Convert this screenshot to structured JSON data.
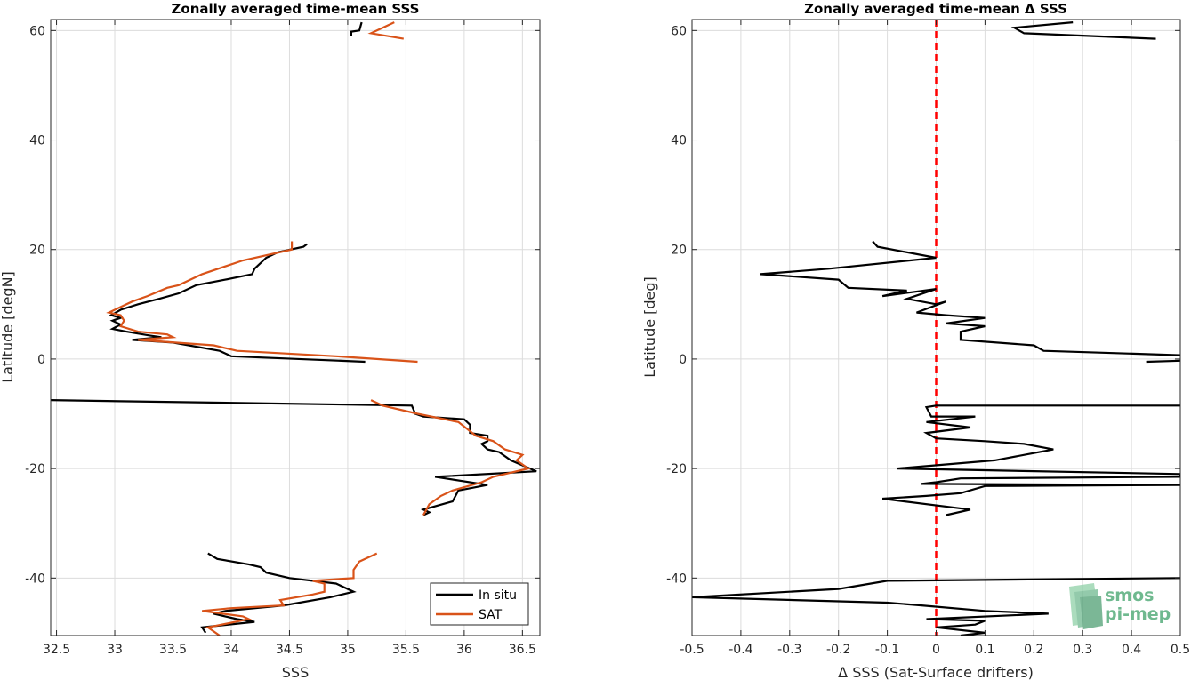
{
  "chart_data": [
    {
      "type": "line",
      "title": "Zonally averaged time-mean SSS",
      "xlabel": "SSS",
      "ylabel": "Latitude [degN]",
      "xlim": [
        32.45,
        36.65
      ],
      "ylim": [
        -50.5,
        62
      ],
      "xticks": [
        32.5,
        33,
        33.5,
        34,
        34.5,
        35,
        35.5,
        36,
        36.5
      ],
      "yticks": [
        -40,
        -20,
        0,
        20,
        40,
        60
      ],
      "grid": true,
      "legend": {
        "position": "bottom-right",
        "entries": [
          "In situ",
          "SAT"
        ]
      },
      "series": [
        {
          "name": "In situ",
          "color": "#000000",
          "segments": [
            [
              [
                35.12,
                61.5
              ],
              [
                35.1,
                60.0
              ],
              [
                35.03,
                59.8
              ],
              [
                35.03,
                59.0
              ]
            ],
            [
              [
                34.65,
                21.0
              ],
              [
                34.62,
                20.5
              ],
              [
                34.4,
                19.5
              ],
              [
                34.3,
                18.5
              ],
              [
                34.2,
                16.5
              ],
              [
                34.18,
                15.5
              ],
              [
                33.95,
                14.5
              ],
              [
                33.7,
                13.5
              ],
              [
                33.55,
                12.0
              ],
              [
                33.38,
                11.0
              ],
              [
                33.2,
                10.0
              ],
              [
                33.05,
                9.0
              ],
              [
                32.97,
                8.0
              ],
              [
                33.05,
                7.5
              ],
              [
                32.98,
                7.0
              ],
              [
                33.05,
                6.3
              ],
              [
                32.98,
                5.5
              ],
              [
                33.1,
                5.0
              ],
              [
                33.3,
                4.3
              ],
              [
                33.4,
                4.0
              ],
              [
                33.15,
                3.5
              ],
              [
                33.5,
                3.0
              ],
              [
                33.9,
                1.5
              ],
              [
                34.0,
                0.5
              ],
              [
                35.15,
                -0.5
              ]
            ],
            [
              [
                32.42,
                -7.5
              ],
              [
                35.55,
                -8.5
              ],
              [
                35.58,
                -10.0
              ],
              [
                35.65,
                -10.5
              ],
              [
                36.0,
                -11.0
              ],
              [
                36.05,
                -12.0
              ],
              [
                36.05,
                -13.5
              ],
              [
                36.2,
                -14.0
              ],
              [
                36.2,
                -15.0
              ],
              [
                36.15,
                -15.5
              ],
              [
                36.2,
                -16.5
              ],
              [
                36.3,
                -17.0
              ],
              [
                36.4,
                -18.5
              ],
              [
                36.62,
                -20.5
              ],
              [
                35.75,
                -21.5
              ],
              [
                36.2,
                -23.0
              ],
              [
                35.95,
                -24.0
              ],
              [
                35.9,
                -26.0
              ],
              [
                35.65,
                -27.5
              ],
              [
                35.7,
                -28.0
              ],
              [
                35.65,
                -28.5
              ]
            ],
            [
              [
                33.8,
                -35.5
              ],
              [
                33.88,
                -36.5
              ],
              [
                34.15,
                -37.5
              ],
              [
                34.25,
                -38.0
              ],
              [
                34.3,
                -39.0
              ],
              [
                34.5,
                -40.0
              ],
              [
                34.9,
                -41.0
              ],
              [
                35.05,
                -42.5
              ],
              [
                34.85,
                -43.5
              ],
              [
                34.45,
                -45.0
              ],
              [
                33.95,
                -46.0
              ],
              [
                33.85,
                -46.5
              ],
              [
                34.05,
                -47.5
              ],
              [
                34.2,
                -48.0
              ],
              [
                33.75,
                -49.0
              ],
              [
                33.78,
                -50.0
              ]
            ]
          ]
        },
        {
          "name": "SAT",
          "color": "#d95319",
          "segments": [
            [
              [
                35.4,
                61.5
              ],
              [
                35.2,
                59.5
              ],
              [
                35.48,
                58.5
              ]
            ],
            [
              [
                34.52,
                21.5
              ],
              [
                34.52,
                20.0
              ],
              [
                34.1,
                18.0
              ],
              [
                33.75,
                15.5
              ],
              [
                33.55,
                13.5
              ],
              [
                33.45,
                13.0
              ],
              [
                33.28,
                11.5
              ],
              [
                33.15,
                10.5
              ],
              [
                32.95,
                8.5
              ],
              [
                33.05,
                8.0
              ],
              [
                33.08,
                7.0
              ],
              [
                33.05,
                6.0
              ],
              [
                33.2,
                5.0
              ],
              [
                33.45,
                4.5
              ],
              [
                33.5,
                4.0
              ],
              [
                33.2,
                3.5
              ],
              [
                33.85,
                2.5
              ],
              [
                34.05,
                1.5
              ],
              [
                34.9,
                0.5
              ],
              [
                35.6,
                -0.5
              ]
            ],
            [
              [
                35.2,
                -7.5
              ],
              [
                35.3,
                -8.5
              ],
              [
                35.6,
                -10.0
              ],
              [
                35.95,
                -11.5
              ],
              [
                36.1,
                -14.0
              ],
              [
                36.25,
                -15.0
              ],
              [
                36.35,
                -16.5
              ],
              [
                36.5,
                -17.5
              ],
              [
                36.45,
                -18.5
              ],
              [
                36.55,
                -20.0
              ],
              [
                36.25,
                -21.5
              ],
              [
                36.15,
                -22.5
              ],
              [
                35.9,
                -24.0
              ],
              [
                35.8,
                -25.0
              ],
              [
                35.7,
                -26.5
              ],
              [
                35.65,
                -28.5
              ]
            ],
            [
              [
                35.25,
                -35.5
              ],
              [
                35.1,
                -37.0
              ],
              [
                35.05,
                -38.5
              ],
              [
                35.05,
                -40.0
              ],
              [
                34.7,
                -40.5
              ],
              [
                34.8,
                -41.0
              ],
              [
                34.8,
                -42.5
              ],
              [
                34.7,
                -43.0
              ],
              [
                34.42,
                -44.0
              ],
              [
                34.45,
                -45.0
              ],
              [
                34.0,
                -45.5
              ],
              [
                33.75,
                -46.0
              ],
              [
                34.1,
                -47.0
              ],
              [
                34.15,
                -47.5
              ],
              [
                33.8,
                -49.0
              ],
              [
                33.9,
                -50.5
              ]
            ]
          ]
        }
      ]
    },
    {
      "type": "line",
      "title": "Zonally averaged time-mean Δ SSS",
      "xlabel": "Δ SSS (Sat-Surface drifters)",
      "ylabel": "Latitude [deg]",
      "xlim": [
        -0.5,
        0.5
      ],
      "ylim": [
        -50.5,
        62
      ],
      "xticks": [
        -0.5,
        -0.4,
        -0.3,
        -0.2,
        -0.1,
        0,
        0.1,
        0.2,
        0.3,
        0.4,
        0.5
      ],
      "xticklabels": [
        "-0.5",
        "-0.4",
        "-0.3",
        "-0.2",
        "-0.1",
        "0",
        "0.1",
        "0.2",
        "0.3",
        "0.4",
        "0.5"
      ],
      "yticks": [
        -40,
        -20,
        0,
        20,
        40,
        60
      ],
      "grid": true,
      "reference_line": {
        "x": 0,
        "color": "#ff0000",
        "style": "dashed"
      },
      "series": [
        {
          "name": "",
          "color": "#000000",
          "segments": [
            [
              [
                0.28,
                61.5
              ],
              [
                0.16,
                60.5
              ],
              [
                0.18,
                59.5
              ],
              [
                0.45,
                58.5
              ]
            ],
            [
              [
                -0.13,
                21.5
              ],
              [
                -0.12,
                20.5
              ],
              [
                0.0,
                18.5
              ],
              [
                -0.22,
                16.5
              ],
              [
                -0.36,
                15.5
              ],
              [
                -0.2,
                14.5
              ],
              [
                -0.18,
                13.0
              ],
              [
                -0.06,
                12.5
              ],
              [
                -0.11,
                11.5
              ],
              [
                0.0,
                12.8
              ],
              [
                -0.06,
                11.0
              ],
              [
                0.0,
                10.0
              ],
              [
                0.02,
                10.5
              ],
              [
                -0.04,
                8.5
              ],
              [
                0.02,
                8.0
              ],
              [
                0.1,
                7.5
              ],
              [
                0.02,
                6.5
              ],
              [
                0.1,
                6.0
              ],
              [
                0.05,
                5.0
              ],
              [
                0.05,
                3.5
              ],
              [
                0.2,
                2.5
              ],
              [
                0.22,
                1.5
              ],
              [
                0.5,
                0.7
              ]
            ],
            [
              [
                0.43,
                -0.5
              ],
              [
                0.5,
                -0.3
              ]
            ],
            [
              [
                0.5,
                -8.5
              ],
              [
                0.0,
                -8.5
              ],
              [
                -0.02,
                -8.8
              ],
              [
                -0.01,
                -10.5
              ],
              [
                0.08,
                -10.5
              ],
              [
                -0.02,
                -11.5
              ],
              [
                0.07,
                -12.5
              ],
              [
                -0.02,
                -13.5
              ],
              [
                0.0,
                -14.5
              ],
              [
                0.1,
                -15.0
              ],
              [
                0.18,
                -15.5
              ],
              [
                0.24,
                -16.5
              ],
              [
                0.12,
                -18.5
              ],
              [
                -0.08,
                -20.0
              ],
              [
                0.5,
                -21.0
              ],
              [
                0.5,
                -21.5
              ],
              [
                0.05,
                -21.8
              ],
              [
                0.0,
                -22.5
              ],
              [
                -0.03,
                -22.8
              ],
              [
                0.5,
                -23.0
              ],
              [
                0.1,
                -23.2
              ],
              [
                0.05,
                -24.5
              ],
              [
                -0.02,
                -25.0
              ],
              [
                -0.11,
                -25.5
              ],
              [
                0.07,
                -27.5
              ],
              [
                0.02,
                -28.5
              ]
            ],
            [
              [
                0.5,
                -40.0
              ],
              [
                -0.1,
                -40.5
              ],
              [
                -0.2,
                -42.0
              ],
              [
                -0.5,
                -43.5
              ],
              [
                -0.1,
                -44.5
              ],
              [
                -0.03,
                -45.0
              ],
              [
                0.1,
                -46.0
              ],
              [
                0.23,
                -46.5
              ],
              [
                -0.02,
                -47.5
              ],
              [
                0.1,
                -47.8
              ],
              [
                0.08,
                -48.5
              ],
              [
                0.0,
                -49.0
              ],
              [
                0.1,
                -50.0
              ],
              [
                0.05,
                -50.5
              ]
            ]
          ]
        }
      ]
    }
  ],
  "logo": {
    "line1": "smos",
    "line2": "pi-mep"
  }
}
